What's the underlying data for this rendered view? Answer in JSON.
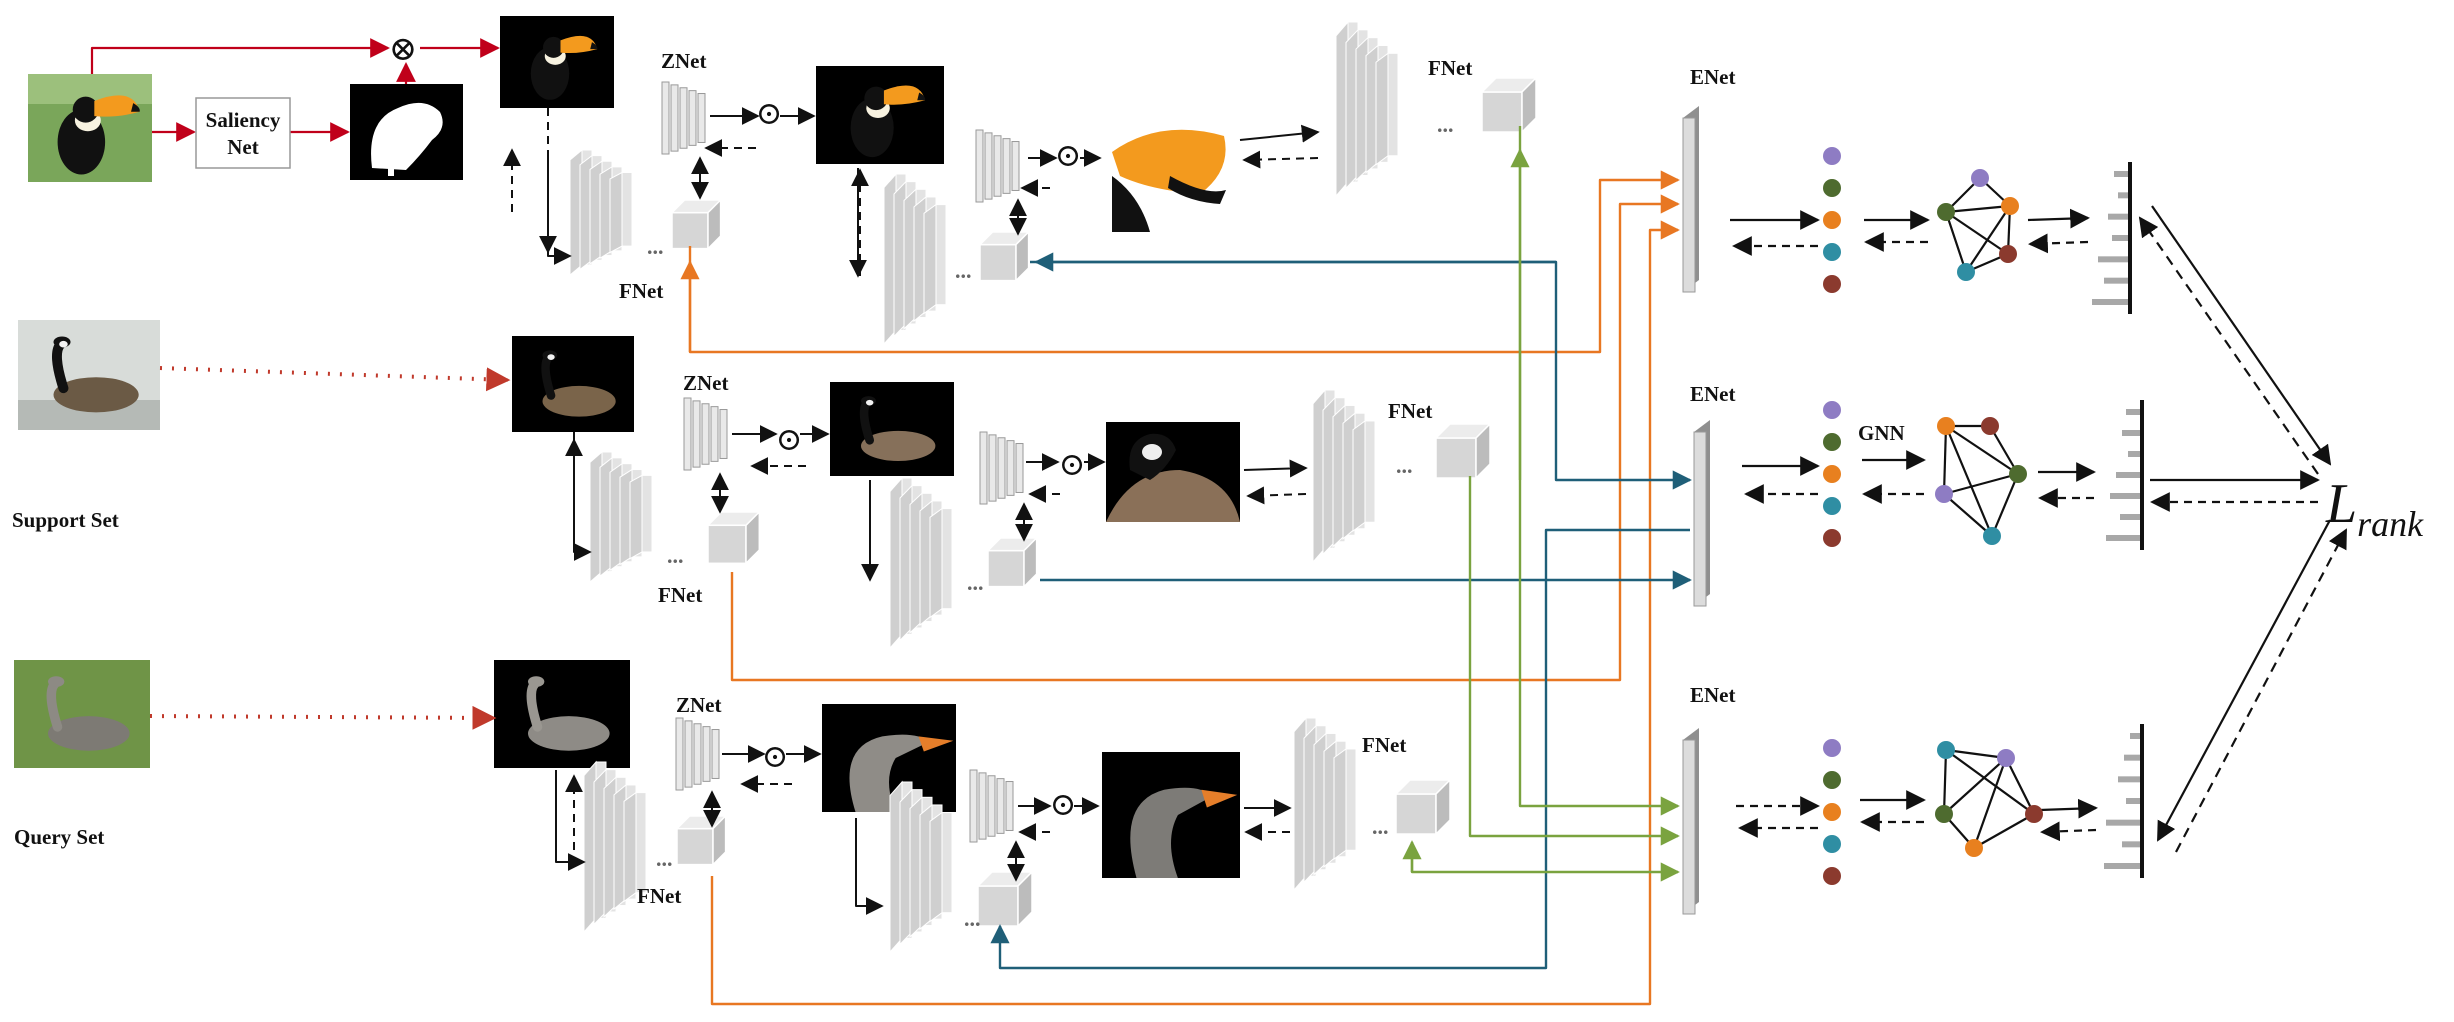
{
  "labels": {
    "saliency_line1": "Saliency",
    "saliency_line2": "Net",
    "znet": "ZNet",
    "fnet": "FNet",
    "enet": "ENet",
    "gnn": "GNN",
    "support_set": "Support Set",
    "query_set": "Query Set",
    "loss_main": "L",
    "loss_sub": "rank",
    "ellipsis": "...",
    "multiply_symbol": "⊗",
    "hadamard_symbol": "⊙"
  },
  "colors": {
    "saliency_arrow": "#c0001a",
    "dotted_arrow": "#c0392b",
    "orange_link": "#e87722",
    "teal_link": "#1f5f78",
    "green_link": "#7aa33f",
    "node_purple": "#8e7cc3",
    "node_green": "#4e6b2f",
    "node_orange": "#e8801f",
    "node_teal": "#2f8ea3",
    "node_red": "#8b3a2e",
    "network_gray": "#cfcfcf",
    "bar_gray": "#a8a8a8"
  },
  "icons": [
    "toucan-photo",
    "goose-photo",
    "greylag-goose-photo",
    "saliency-mask",
    "cnn-block",
    "feature-cube",
    "graph"
  ]
}
